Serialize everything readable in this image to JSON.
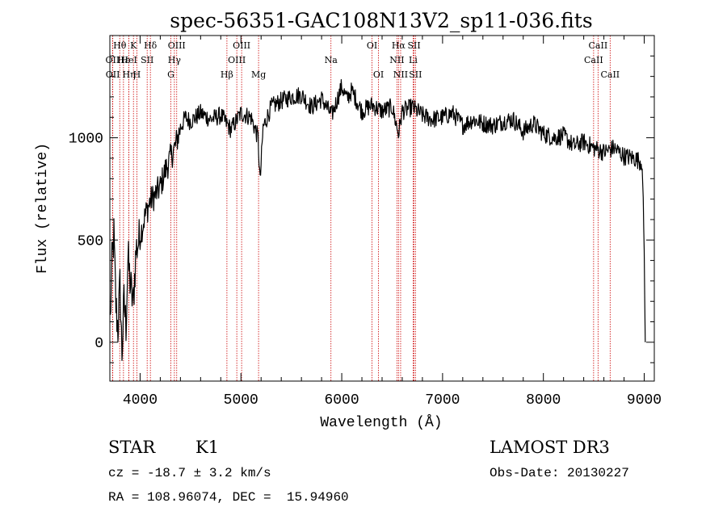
{
  "chart_data": {
    "type": "line",
    "title": "spec-56351-GAC108N13V2_sp11-036.fits",
    "xlabel": "Wavelength (Å)",
    "ylabel": "Flux (relative)",
    "xlim": [
      3700,
      9100
    ],
    "ylim": [
      -190,
      1500
    ],
    "x_ticks": [
      4000,
      5000,
      6000,
      7000,
      8000,
      9000
    ],
    "x_tick_labels": [
      "4000",
      "5000",
      "6000",
      "7000",
      "8000",
      "9000"
    ],
    "y_ticks": [
      0,
      500,
      1000
    ],
    "y_tick_labels": [
      "0",
      "500",
      "1000"
    ],
    "series": [
      {
        "name": "spectrum",
        "color": "#000000",
        "anchors": [
          [
            3705,
            100
          ],
          [
            3720,
            380
          ],
          [
            3740,
            520
          ],
          [
            3760,
            180
          ],
          [
            3780,
            60
          ],
          [
            3800,
            280
          ],
          [
            3820,
            -60
          ],
          [
            3840,
            200
          ],
          [
            3860,
            80
          ],
          [
            3880,
            420
          ],
          [
            3900,
            300
          ],
          [
            3930,
            180
          ],
          [
            3960,
            450
          ],
          [
            4000,
            520
          ],
          [
            4050,
            620
          ],
          [
            4100,
            690
          ],
          [
            4150,
            720
          ],
          [
            4200,
            760
          ],
          [
            4250,
            840
          ],
          [
            4300,
            900
          ],
          [
            4350,
            960
          ],
          [
            4400,
            1050
          ],
          [
            4450,
            1100
          ],
          [
            4500,
            1080
          ],
          [
            4600,
            1120
          ],
          [
            4700,
            1090
          ],
          [
            4800,
            1110
          ],
          [
            4900,
            1040
          ],
          [
            5000,
            1120
          ],
          [
            5100,
            1100
          ],
          [
            5170,
            1000
          ],
          [
            5190,
            780
          ],
          [
            5220,
            1050
          ],
          [
            5300,
            1150
          ],
          [
            5400,
            1180
          ],
          [
            5500,
            1200
          ],
          [
            5600,
            1210
          ],
          [
            5700,
            1150
          ],
          [
            5800,
            1190
          ],
          [
            5900,
            1110
          ],
          [
            5950,
            1180
          ],
          [
            6000,
            1250
          ],
          [
            6050,
            1190
          ],
          [
            6100,
            1230
          ],
          [
            6200,
            1130
          ],
          [
            6300,
            1160
          ],
          [
            6400,
            1130
          ],
          [
            6500,
            1150
          ],
          [
            6563,
            1020
          ],
          [
            6600,
            1130
          ],
          [
            6700,
            1150
          ],
          [
            6800,
            1110
          ],
          [
            6900,
            1090
          ],
          [
            7000,
            1100
          ],
          [
            7100,
            1120
          ],
          [
            7200,
            1060
          ],
          [
            7300,
            1090
          ],
          [
            7400,
            1070
          ],
          [
            7500,
            1060
          ],
          [
            7600,
            1080
          ],
          [
            7700,
            1090
          ],
          [
            7800,
            1030
          ],
          [
            7900,
            1070
          ],
          [
            8000,
            1020
          ],
          [
            8100,
            1000
          ],
          [
            8200,
            1010
          ],
          [
            8300,
            960
          ],
          [
            8400,
            980
          ],
          [
            8500,
            950
          ],
          [
            8600,
            930
          ],
          [
            8700,
            950
          ],
          [
            8800,
            910
          ],
          [
            8900,
            900
          ],
          [
            8980,
            880
          ],
          [
            9000,
            450
          ],
          [
            9010,
            0
          ]
        ]
      }
    ],
    "line_markers": [
      {
        "label": "Hθ",
        "wavelength": 3798,
        "row": 0
      },
      {
        "label": "OII",
        "wavelength": 3727,
        "row": 1
      },
      {
        "label": "OII",
        "wavelength": 3729,
        "row": 2
      },
      {
        "label": "Hε",
        "wavelength": 3835,
        "row": 1
      },
      {
        "label": "Hη",
        "wavelength": 3889,
        "row": 2
      },
      {
        "label": "K",
        "wavelength": 3934,
        "row": 0
      },
      {
        "label": "HeI",
        "wavelength": 3889,
        "row": 1
      },
      {
        "label": "H",
        "wavelength": 3968,
        "row": 2
      },
      {
        "label": "SII",
        "wavelength": 4070,
        "row": 1
      },
      {
        "label": "Hδ",
        "wavelength": 4102,
        "row": 0
      },
      {
        "label": "OIII",
        "wavelength": 4363,
        "row": 0
      },
      {
        "label": "Hγ",
        "wavelength": 4340,
        "row": 1
      },
      {
        "label": "G",
        "wavelength": 4305,
        "row": 2
      },
      {
        "label": "Hβ",
        "wavelength": 4861,
        "row": 2
      },
      {
        "label": "OIII",
        "wavelength": 5007,
        "row": 0
      },
      {
        "label": "OIII",
        "wavelength": 4959,
        "row": 1
      },
      {
        "label": "Mg",
        "wavelength": 5175,
        "row": 2
      },
      {
        "label": "Na",
        "wavelength": 5893,
        "row": 1
      },
      {
        "label": "OI",
        "wavelength": 6300,
        "row": 0
      },
      {
        "label": "OI",
        "wavelength": 6364,
        "row": 2
      },
      {
        "label": "Hα",
        "wavelength": 6563,
        "row": 0
      },
      {
        "label": "NII",
        "wavelength": 6548,
        "row": 1
      },
      {
        "label": "NII",
        "wavelength": 6584,
        "row": 2
      },
      {
        "label": "SII",
        "wavelength": 6717,
        "row": 0
      },
      {
        "label": "Li",
        "wavelength": 6708,
        "row": 1
      },
      {
        "label": "SII",
        "wavelength": 6731,
        "row": 2
      },
      {
        "label": "CaII",
        "wavelength": 8542,
        "row": 0
      },
      {
        "label": "CaII",
        "wavelength": 8498,
        "row": 1
      },
      {
        "label": "CaII",
        "wavelength": 8662,
        "row": 2
      }
    ],
    "marker_color": "#cc0000"
  },
  "info": {
    "object_class": "STAR",
    "subclass": "K1",
    "survey": "LAMOST DR3",
    "redshift_text": "cz = -18.7 ± 3.2 km/s",
    "obs_date_text": "Obs-Date: 20130227",
    "coords_text": "RA = 108.96074, DEC =  15.94960"
  }
}
